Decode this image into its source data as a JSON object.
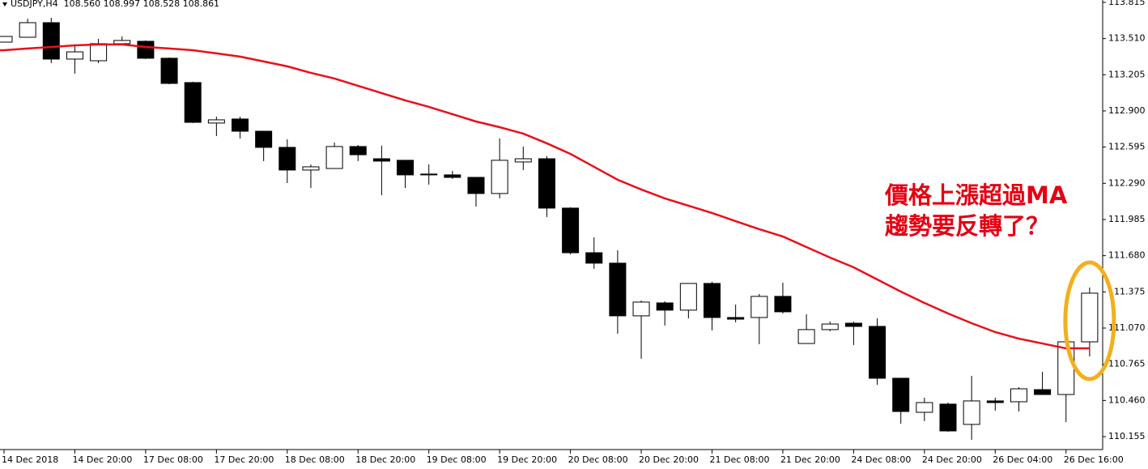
{
  "chart_data": {
    "type": "candlestick",
    "title": "USDJPY,H4  108.560 108.997 108.528 108.861",
    "annotations": [
      "價格上漲超過MA",
      "趨勢要反轉了？"
    ],
    "categories": [
      "14 Dec 2018",
      null,
      null,
      "14 Dec 20:00",
      null,
      null,
      "17 Dec 08:00",
      null,
      null,
      "17 Dec 20:00",
      null,
      null,
      "18 Dec 08:00",
      null,
      null,
      "18 Dec 20:00",
      null,
      null,
      "19 Dec 08:00",
      null,
      null,
      "19 Dec 20:00",
      null,
      null,
      "20 Dec 08:00",
      null,
      null,
      "20 Dec 20:00",
      null,
      null,
      "21 Dec 08:00",
      null,
      null,
      "21 Dec 20:00",
      null,
      null,
      "24 Dec 08:00",
      null,
      null,
      "24 Dec 20:00",
      null,
      null,
      "26 Dec 04:00",
      null,
      null,
      "26 Dec 16:00",
      null
    ],
    "ohlc": {
      "open": [
        113.48,
        113.521,
        113.644,
        113.337,
        113.323,
        113.467,
        113.487,
        113.344,
        113.139,
        112.798,
        112.832,
        112.729,
        112.593,
        112.402,
        112.415,
        112.6,
        112.497,
        112.484,
        112.368,
        112.361,
        112.34,
        112.204,
        112.47,
        112.497,
        112.081,
        111.705,
        111.617,
        111.173,
        111.282,
        111.221,
        111.446,
        111.159,
        111.159,
        111.337,
        110.94,
        111.057,
        111.111,
        111.084,
        110.647,
        110.36,
        110.429,
        110.258,
        110.456,
        110.449,
        110.551,
        110.51,
        110.954
      ],
      "high": [
        113.528,
        113.678,
        113.685,
        113.46,
        113.508,
        113.528,
        113.494,
        113.351,
        113.146,
        112.852,
        112.852,
        112.729,
        112.661,
        112.449,
        112.634,
        112.613,
        112.607,
        112.484,
        112.449,
        112.395,
        112.34,
        112.668,
        112.6,
        112.518,
        112.088,
        111.835,
        111.726,
        111.302,
        111.296,
        111.446,
        111.46,
        111.268,
        111.357,
        111.453,
        111.186,
        111.125,
        111.125,
        111.152,
        110.647,
        110.483,
        110.442,
        110.667,
        110.483,
        110.572,
        110.701,
        110.954,
        111.412
      ],
      "low": [
        113.48,
        113.521,
        113.303,
        113.214,
        113.303,
        113.453,
        113.337,
        113.125,
        112.798,
        112.688,
        112.668,
        112.477,
        112.292,
        112.251,
        112.415,
        112.477,
        112.19,
        112.251,
        112.279,
        112.327,
        112.094,
        112.163,
        112.402,
        112.006,
        111.691,
        111.569,
        111.022,
        110.811,
        111.091,
        111.152,
        111.05,
        111.118,
        110.934,
        111.193,
        110.94,
        111.043,
        110.927,
        110.592,
        110.265,
        110.285,
        110.196,
        110.128,
        110.374,
        110.367,
        110.51,
        110.278,
        110.831
      ],
      "close": [
        113.528,
        113.644,
        113.337,
        113.398,
        113.467,
        113.494,
        113.344,
        113.132,
        112.804,
        112.825,
        112.729,
        112.593,
        112.402,
        112.429,
        112.6,
        112.531,
        112.477,
        112.361,
        112.361,
        112.34,
        112.204,
        112.484,
        112.497,
        112.081,
        111.705,
        111.617,
        111.173,
        111.289,
        111.221,
        111.446,
        111.159,
        111.145,
        111.337,
        111.207,
        111.057,
        111.104,
        111.084,
        110.647,
        110.367,
        110.442,
        110.203,
        110.456,
        110.442,
        110.558,
        110.51,
        110.954,
        111.364
      ],
      "up_color": "#ffffff",
      "down_color": "#000000"
    },
    "ma": {
      "color": "#e8101a",
      "values": [
        113.412,
        113.426,
        113.439,
        113.453,
        113.46,
        113.46,
        113.439,
        113.426,
        113.412,
        113.385,
        113.358,
        113.317,
        113.276,
        113.221,
        113.173,
        113.112,
        113.05,
        112.989,
        112.934,
        112.873,
        112.811,
        112.763,
        112.709,
        112.627,
        112.538,
        112.429,
        112.32,
        112.238,
        112.163,
        112.101,
        112.04,
        111.971,
        111.903,
        111.842,
        111.753,
        111.664,
        111.582,
        111.48,
        111.377,
        111.282,
        111.193,
        111.111,
        111.036,
        110.981,
        110.94,
        110.899,
        110.899
      ]
    },
    "ylim": [
      110.046,
      113.835
    ],
    "yticks": [
      113.815,
      {
        "value": 113.51,
        "label": "113.510"
      },
      113.205,
      {
        "value": 112.9,
        "label": "112.900"
      },
      112.595,
      {
        "value": 112.29,
        "label": "112.290"
      },
      111.985,
      {
        "value": 111.68,
        "label": "111.680"
      },
      111.375,
      {
        "value": 111.07,
        "label": "111.070"
      },
      110.765,
      {
        "value": 110.46,
        "label": "110.460"
      },
      110.155
    ]
  }
}
